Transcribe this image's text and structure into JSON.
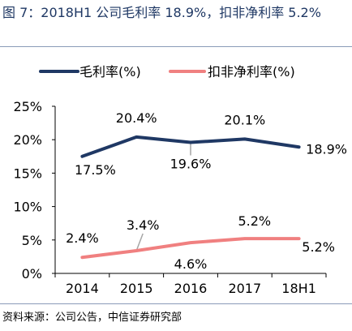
{
  "caption": "图 7：2018H1 公司毛利率 18.9%，扣非净利率 5.2%",
  "source": "资料来源：公司公告，中信证券研究部",
  "colors": {
    "series_gross": "#1f3864",
    "series_net": "#f08080",
    "leader": "#a6a6a6",
    "axis": "#000000"
  },
  "chart_data": {
    "type": "line",
    "categories": [
      "2014",
      "2015",
      "2016",
      "2017",
      "18H1"
    ],
    "ylim": [
      0,
      25
    ],
    "yticks": [
      0,
      5,
      10,
      15,
      20,
      25
    ],
    "ytick_labels": [
      "0%",
      "5%",
      "10%",
      "15%",
      "20%",
      "25%"
    ],
    "grid": false,
    "legend_position": "top",
    "series": [
      {
        "name": "毛利率(%)",
        "values": [
          17.5,
          20.4,
          19.6,
          20.1,
          18.9
        ],
        "labels": [
          "17.5%",
          "20.4%",
          "19.6%",
          "20.1%",
          "18.9%"
        ]
      },
      {
        "name": "扣非净利率(%)",
        "values": [
          2.4,
          3.4,
          4.6,
          5.2,
          5.2
        ],
        "labels": [
          "2.4%",
          "3.4%",
          "4.6%",
          "5.2%",
          "5.2%"
        ]
      }
    ]
  }
}
